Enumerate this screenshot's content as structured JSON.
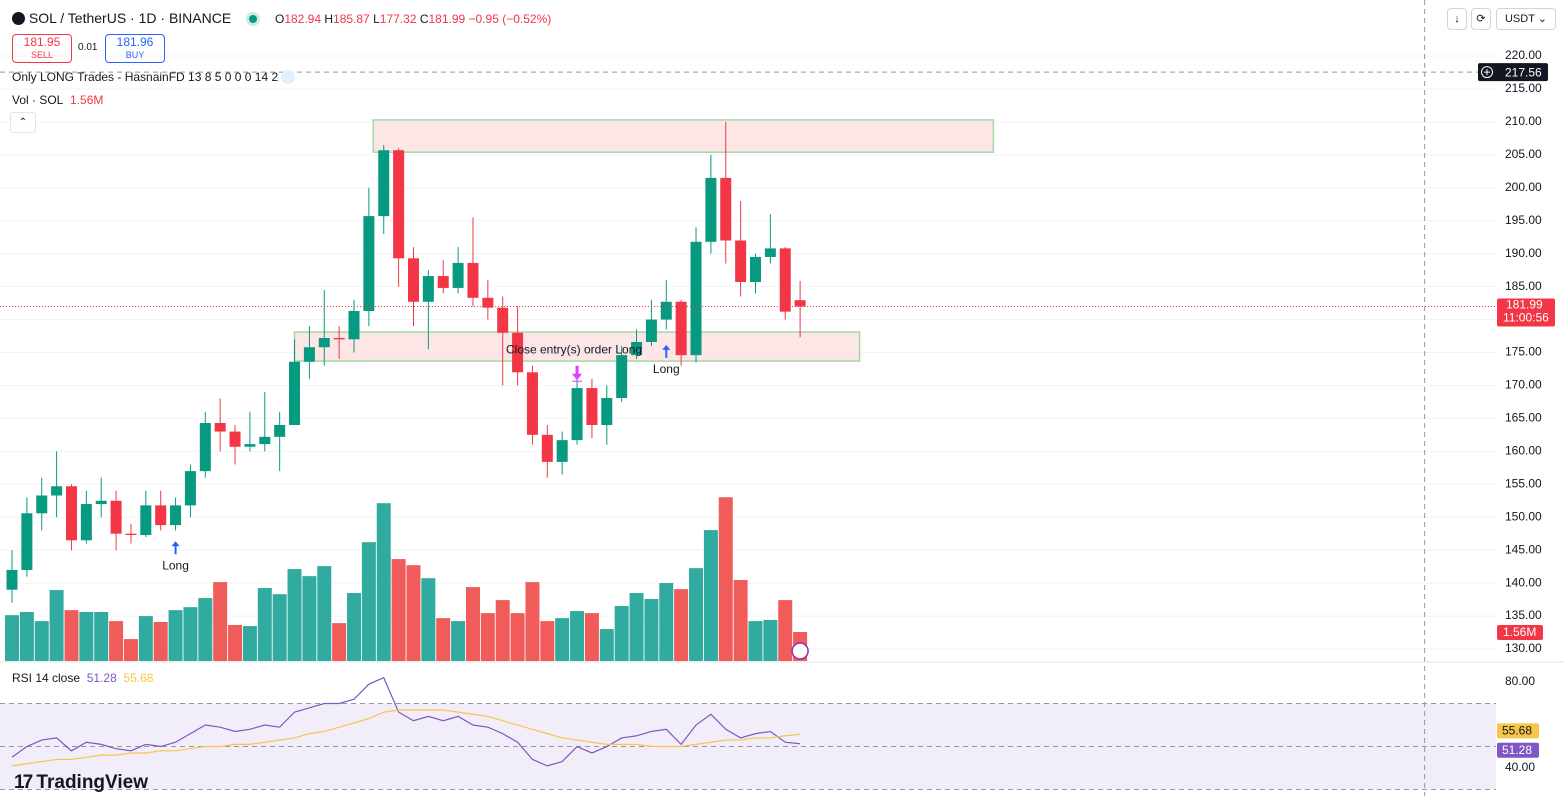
{
  "toolbar": {
    "symbol": "SOL / TetherUS · 1D · BINANCE",
    "ohlc_prefixes": [
      "O",
      "H",
      "L",
      "C"
    ],
    "change": "−0.95 (−0.52%)",
    "sell_price": "181.95",
    "sell": "SELL",
    "spread": "0.01",
    "buy_price": "181.96",
    "buy": "BUY",
    "currency": "USDT"
  },
  "indicators": {
    "strategy": "Only LONG Trades - HasnainFD 13 8 5 0 0 0 14 2",
    "volume": "Vol · SOL",
    "rsi": "RSI 14 close"
  },
  "branding": "TradingView",
  "chart_data": [
    {
      "type": "candlestick",
      "open": [
        139,
        142,
        150.6,
        153.3,
        154.7,
        146.5,
        152,
        152.5,
        147.5,
        147.3,
        151.8,
        148.8,
        151.8,
        157,
        164.3,
        163,
        160.7,
        161.1,
        162.2,
        164,
        173.6,
        175.8,
        177.2,
        177,
        181.3,
        195.7,
        205.7,
        189.3,
        182.7,
        186.6,
        184.8,
        188.6,
        183.3,
        181.8,
        178,
        172,
        162.5,
        158.4,
        161.7,
        169.6,
        164,
        168.1,
        174.6,
        176.6,
        180,
        182.7,
        174.6,
        191.8,
        201.5,
        192,
        185.7,
        189.5,
        190.8,
        182.94
      ],
      "high": [
        145,
        153,
        156,
        160,
        155,
        154,
        156,
        154,
        149,
        154,
        154,
        153,
        158,
        166,
        168,
        164,
        166,
        169,
        166,
        177,
        179,
        184.5,
        179,
        183,
        200,
        206.5,
        206,
        191,
        187.5,
        189,
        191,
        195.5,
        186,
        183.5,
        182,
        173,
        164,
        163,
        172,
        171,
        170,
        176,
        178.5,
        183,
        186,
        183,
        194,
        205,
        210,
        198,
        190,
        196,
        191,
        185.87
      ],
      "low": [
        137,
        141,
        148,
        150,
        145,
        146,
        150,
        145,
        146,
        147,
        148,
        148,
        150,
        156,
        160,
        158,
        160,
        160,
        157,
        164,
        171,
        173,
        174,
        175,
        179,
        193,
        185,
        179,
        175.5,
        184,
        184,
        182,
        180,
        170,
        170,
        161,
        156,
        156.5,
        161,
        162,
        161,
        167.5,
        174,
        176,
        178.5,
        173,
        173.5,
        190,
        188.5,
        183.5,
        184,
        188.5,
        180,
        177.32
      ],
      "close": [
        142,
        150.6,
        153.3,
        154.7,
        146.5,
        152,
        152.5,
        147.5,
        147.3,
        151.8,
        148.8,
        151.8,
        157,
        164.3,
        163,
        160.7,
        161.1,
        162.2,
        164,
        173.6,
        175.8,
        177.2,
        177,
        181.3,
        195.7,
        205.7,
        189.3,
        182.7,
        186.6,
        184.8,
        188.6,
        183.3,
        181.8,
        178,
        172,
        162.5,
        158.4,
        161.7,
        169.6,
        164,
        168.1,
        174.6,
        176.6,
        180,
        182.7,
        174.6,
        191.8,
        201.5,
        192,
        185.7,
        189.5,
        190.8,
        181.2,
        181.99
      ],
      "up_color": "#089981",
      "down_color": "#f23645",
      "ylim": [
        128.18,
        228.5
      ],
      "yticks": [
        {
          "value": 130,
          "label": "130.00"
        },
        {
          "value": 135,
          "label": "135.00"
        },
        {
          "value": 140,
          "label": "140.00"
        },
        {
          "value": 145,
          "label": "145.00"
        },
        {
          "value": 150,
          "label": "150.00"
        },
        {
          "value": 155,
          "label": "155.00"
        },
        {
          "value": 160,
          "label": "160.00"
        },
        {
          "value": 165,
          "label": "165.00"
        },
        {
          "value": 170,
          "label": "170.00"
        },
        {
          "value": 175,
          "label": "175.00"
        },
        {
          "value": 180,
          "label": "180.00"
        },
        {
          "value": 185,
          "label": "185.00"
        },
        {
          "value": 190,
          "label": "190.00"
        },
        {
          "value": 195,
          "label": "195.00"
        },
        {
          "value": 200,
          "label": "200.00"
        },
        {
          "value": 205,
          "label": "205.00"
        },
        {
          "value": 210,
          "label": "210.00"
        },
        {
          "value": 215,
          "label": "215.00"
        },
        {
          "value": 220,
          "label": "220.00"
        }
      ],
      "grid": true,
      "countdown": "11:00:56",
      "crosshair": {
        "price": 217.56,
        "index": 95
      },
      "zones": [
        {
          "top": 210.3,
          "bottom": 205.4,
          "x": [
            24.3,
            66
          ]
        },
        {
          "top": 178.1,
          "bottom": 173.7,
          "x": [
            19,
            57
          ]
        }
      ],
      "signals": [
        {
          "index": 11,
          "price": 145.3,
          "label": "Long",
          "arrow": "up",
          "color": "#2962ff"
        },
        {
          "index": 44,
          "price": 175.1,
          "label": "Long",
          "arrow": "up",
          "color": "#2962ff"
        },
        {
          "index": 38,
          "price": 172,
          "label": "Close entry(s) order Long",
          "arrow": "down",
          "color": "#e040fb"
        }
      ],
      "volume": {
        "values": [
          2.47,
          2.64,
          2.15,
          3.82,
          2.74,
          2.64,
          2.64,
          2.15,
          1.18,
          2.42,
          2.1,
          2.74,
          2.9,
          3.39,
          4.25,
          1.94,
          1.88,
          3.93,
          3.6,
          4.95,
          4.57,
          5.11,
          2.04,
          3.66,
          6.4,
          8.5,
          5.49,
          5.16,
          4.46,
          2.31,
          2.15,
          3.98,
          2.58,
          3.28,
          2.58,
          4.25,
          2.15,
          2.31,
          2.69,
          2.58,
          1.72,
          2.96,
          3.66,
          3.34,
          4.2,
          3.87,
          5.0,
          7.05,
          8.82,
          4.36,
          2.15,
          2.21,
          3.28,
          1.56
        ],
        "last_value_label": "1.56M",
        "ylim": [
          0,
          35.6
        ],
        "up_color": "#26a69a",
        "down_color": "#ef5350"
      }
    },
    {
      "type": "line",
      "series": [
        {
          "color": "#7e57c2",
          "values": [
            45,
            50,
            53,
            54,
            48,
            52,
            51,
            49,
            48,
            51,
            50,
            52,
            56,
            60,
            59,
            57,
            58,
            60,
            59,
            66,
            68,
            70,
            70,
            72,
            79,
            82,
            66,
            62,
            64,
            62,
            64,
            60,
            59,
            56,
            52,
            44,
            41,
            43,
            50,
            47,
            50,
            54,
            55,
            57,
            58,
            51,
            60,
            65,
            58,
            54,
            56,
            57,
            52,
            51.28
          ]
        },
        {
          "color": "#f7c548",
          "values": [
            41,
            42,
            43,
            44,
            44,
            45,
            46,
            46,
            47,
            47,
            48,
            48,
            49,
            50,
            50,
            51,
            51,
            52,
            53,
            54,
            56,
            57,
            59,
            61,
            63,
            66,
            67,
            67,
            67,
            67,
            66,
            65,
            64,
            62,
            60,
            58,
            56,
            54,
            53,
            52,
            51,
            51,
            51,
            50,
            50,
            50,
            51,
            52,
            53,
            53,
            54,
            54,
            55,
            55.68
          ]
        }
      ],
      "ylim": [
        27,
        89.3
      ],
      "yticks": [
        {
          "value": 80,
          "label": "80.00"
        },
        {
          "value": 40,
          "label": "40.00"
        }
      ],
      "levels": [
        70,
        50,
        30
      ],
      "band_color": "#7e57c2"
    }
  ]
}
